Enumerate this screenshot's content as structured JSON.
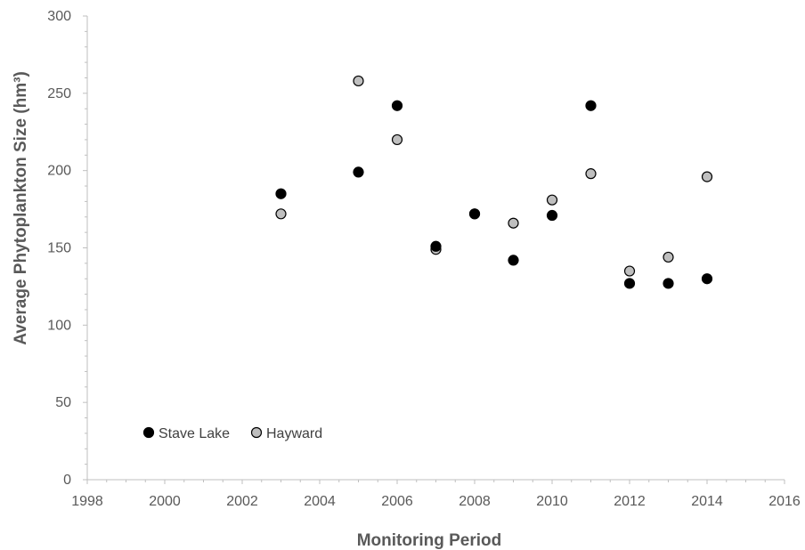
{
  "chart_data": {
    "type": "scatter",
    "xlabel": "Monitoring Period",
    "ylabel": "Average Phytoplankton Size (hm³)",
    "xlim": [
      1998,
      2016
    ],
    "ylim": [
      0,
      300
    ],
    "xticks": [
      "1998",
      "2000",
      "2002",
      "2004",
      "2006",
      "2008",
      "2010",
      "2012",
      "2014",
      "2016"
    ],
    "yticks": [
      "0",
      "50",
      "100",
      "150",
      "200",
      "250",
      "300"
    ],
    "grid": false,
    "legend_position": "bottom-left",
    "series": [
      {
        "name": "Stave Lake",
        "fill": "#000000",
        "points": [
          {
            "x": 2003,
            "y": 185
          },
          {
            "x": 2005,
            "y": 199
          },
          {
            "x": 2006,
            "y": 242
          },
          {
            "x": 2007,
            "y": 151
          },
          {
            "x": 2008,
            "y": 172
          },
          {
            "x": 2009,
            "y": 142
          },
          {
            "x": 2010,
            "y": 171
          },
          {
            "x": 2011,
            "y": 242
          },
          {
            "x": 2012,
            "y": 127
          },
          {
            "x": 2013,
            "y": 127
          },
          {
            "x": 2014,
            "y": 130
          }
        ]
      },
      {
        "name": "Hayward",
        "fill": "#bfbfbf",
        "points": [
          {
            "x": 2003,
            "y": 172
          },
          {
            "x": 2005,
            "y": 258
          },
          {
            "x": 2006,
            "y": 220
          },
          {
            "x": 2007,
            "y": 149
          },
          {
            "x": 2008,
            "y": 172
          },
          {
            "x": 2009,
            "y": 166
          },
          {
            "x": 2010,
            "y": 181
          },
          {
            "x": 2011,
            "y": 198
          },
          {
            "x": 2012,
            "y": 135
          },
          {
            "x": 2013,
            "y": 144
          },
          {
            "x": 2014,
            "y": 196
          }
        ]
      }
    ]
  }
}
